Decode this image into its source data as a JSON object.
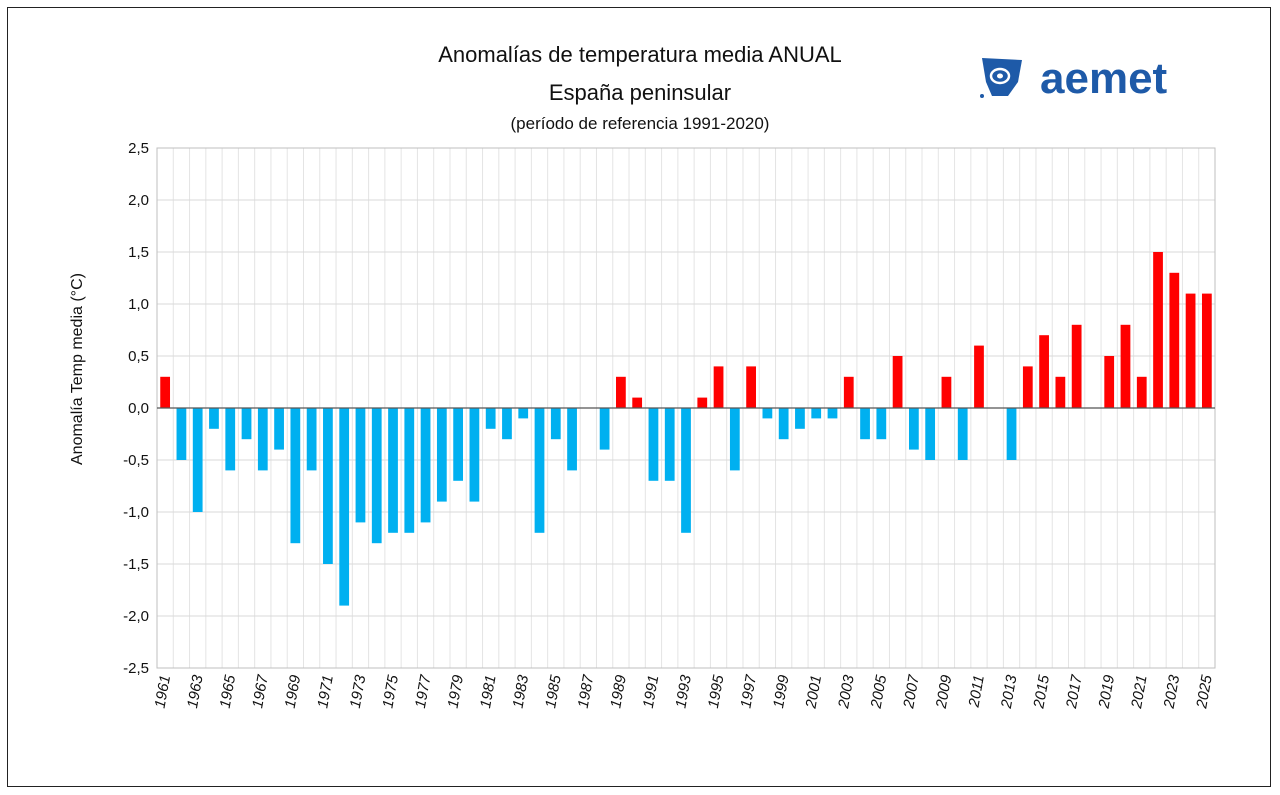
{
  "logo_text": "aemet",
  "colors": {
    "positive": "#ff0000",
    "negative": "#00b0f0",
    "logo": "#1e5aa8"
  },
  "chart_data": {
    "type": "bar",
    "title": "Anomalías de temperatura media ANUAL",
    "subtitle": "España peninsular",
    "note": "(período de referencia 1991-2020)",
    "xlabel": "",
    "ylabel": "Anomalía Temp media (°C)",
    "ylim": [
      -2.5,
      2.5
    ],
    "yticks": [
      "2,5",
      "2,0",
      "1,5",
      "1,0",
      "0,5",
      "0,0",
      "-0,5",
      "-1,0",
      "-1,5",
      "-2,0",
      "-2,5"
    ],
    "grid": true,
    "categories": [
      1961,
      1962,
      1963,
      1964,
      1965,
      1966,
      1967,
      1968,
      1969,
      1970,
      1971,
      1972,
      1973,
      1974,
      1975,
      1976,
      1977,
      1978,
      1979,
      1980,
      1981,
      1982,
      1983,
      1984,
      1985,
      1986,
      1987,
      1988,
      1989,
      1990,
      1991,
      1992,
      1993,
      1994,
      1995,
      1996,
      1997,
      1998,
      1999,
      2000,
      2001,
      2002,
      2003,
      2004,
      2005,
      2006,
      2007,
      2008,
      2009,
      2010,
      2011,
      2012,
      2013,
      2014,
      2015,
      2016,
      2017,
      2018,
      2019,
      2020,
      2021,
      2022,
      2023,
      2024,
      2025
    ],
    "values": [
      0.3,
      -0.5,
      -1.0,
      -0.2,
      -0.6,
      -0.3,
      -0.6,
      -0.4,
      -1.3,
      -0.6,
      -1.5,
      -1.9,
      -1.1,
      -1.3,
      -1.2,
      -1.2,
      -1.1,
      -0.9,
      -0.7,
      -0.9,
      -0.2,
      -0.3,
      -0.1,
      -1.2,
      -0.3,
      -0.6,
      0.0,
      -0.4,
      0.3,
      0.1,
      -0.7,
      -0.7,
      -1.2,
      0.1,
      0.4,
      -0.6,
      0.4,
      -0.1,
      -0.3,
      -0.2,
      -0.1,
      -0.1,
      0.3,
      -0.3,
      -0.3,
      0.5,
      -0.4,
      -0.5,
      0.3,
      -0.5,
      0.6,
      0.0,
      -0.5,
      0.4,
      0.7,
      0.3,
      0.8,
      0.0,
      0.5,
      0.8,
      0.3,
      1.5,
      1.3,
      1.1,
      1.1
    ]
  }
}
